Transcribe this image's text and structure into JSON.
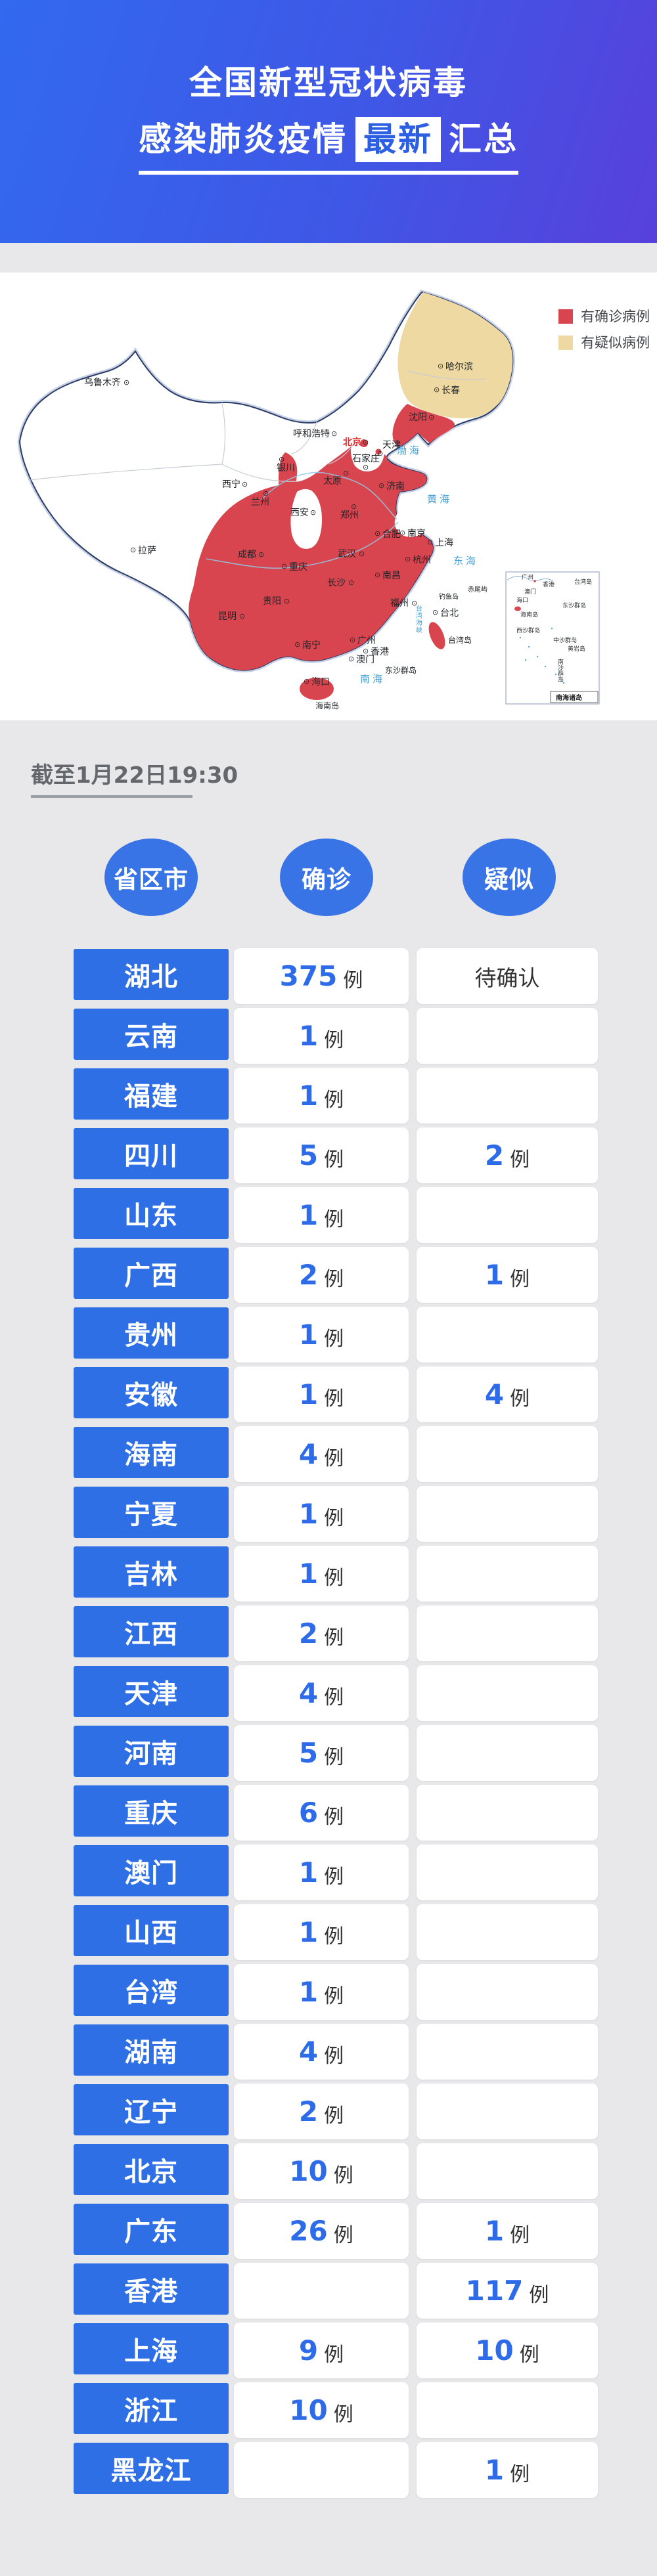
{
  "header": {
    "title_line1": "全国新型冠状病毒",
    "title_line2_prefix": "感染肺炎疫情",
    "title_line2_highlight": "最新",
    "title_line2_suffix": "汇总"
  },
  "timestamp": "截至1月22日19:30",
  "map": {
    "marker_glyph": "⊙",
    "legend": [
      {
        "label": "有确诊病例",
        "color": "#d9454e"
      },
      {
        "label": "有疑似病例",
        "color": "#eed9a2"
      }
    ],
    "cities": [
      {
        "name": "乌鲁木齐"
      },
      {
        "name": "哈尔滨"
      },
      {
        "name": "长春"
      },
      {
        "name": "沈阳"
      },
      {
        "name": "呼和浩特"
      },
      {
        "name": "北京"
      },
      {
        "name": "天津"
      },
      {
        "name": "石家庄"
      },
      {
        "name": "太原"
      },
      {
        "name": "济南"
      },
      {
        "name": "银川"
      },
      {
        "name": "西宁"
      },
      {
        "name": "兰州"
      },
      {
        "name": "西安"
      },
      {
        "name": "郑州"
      },
      {
        "name": "合肥"
      },
      {
        "name": "南京"
      },
      {
        "name": "上海"
      },
      {
        "name": "杭州"
      },
      {
        "name": "成都"
      },
      {
        "name": "重庆"
      },
      {
        "name": "武汉"
      },
      {
        "name": "南昌"
      },
      {
        "name": "长沙"
      },
      {
        "name": "贵阳"
      },
      {
        "name": "昆明"
      },
      {
        "name": "福州"
      },
      {
        "name": "台北"
      },
      {
        "name": "拉萨"
      },
      {
        "name": "南宁"
      },
      {
        "name": "广州"
      },
      {
        "name": "香港"
      },
      {
        "name": "澳门"
      },
      {
        "name": "海口"
      }
    ],
    "seas": [
      "渤海",
      "黄海",
      "东海",
      "南海",
      "台湾海峡"
    ],
    "islands": [
      "海南岛",
      "台湾岛",
      "东沙群岛",
      "钓鱼岛",
      "赤尾屿"
    ],
    "inset": {
      "title": "南海诸岛",
      "labels": [
        "广州",
        "香港",
        "澳门",
        "海口",
        "海南岛",
        "台湾岛",
        "东沙群岛",
        "西沙群岛",
        "中沙群岛",
        "黄岩岛",
        "南沙群岛"
      ]
    }
  },
  "table": {
    "headers": [
      "省区市",
      "确诊",
      "疑似"
    ],
    "unit": "例",
    "rows": [
      {
        "province": "湖北",
        "confirmed": "375",
        "suspected": "待确认"
      },
      {
        "province": "云南",
        "confirmed": "1",
        "suspected": ""
      },
      {
        "province": "福建",
        "confirmed": "1",
        "suspected": ""
      },
      {
        "province": "四川",
        "confirmed": "5",
        "suspected": "2"
      },
      {
        "province": "山东",
        "confirmed": "1",
        "suspected": ""
      },
      {
        "province": "广西",
        "confirmed": "2",
        "suspected": "1"
      },
      {
        "province": "贵州",
        "confirmed": "1",
        "suspected": ""
      },
      {
        "province": "安徽",
        "confirmed": "1",
        "suspected": "4"
      },
      {
        "province": "海南",
        "confirmed": "4",
        "suspected": ""
      },
      {
        "province": "宁夏",
        "confirmed": "1",
        "suspected": ""
      },
      {
        "province": "吉林",
        "confirmed": "1",
        "suspected": ""
      },
      {
        "province": "江西",
        "confirmed": "2",
        "suspected": ""
      },
      {
        "province": "天津",
        "confirmed": "4",
        "suspected": ""
      },
      {
        "province": "河南",
        "confirmed": "5",
        "suspected": ""
      },
      {
        "province": "重庆",
        "confirmed": "6",
        "suspected": ""
      },
      {
        "province": "澳门",
        "confirmed": "1",
        "suspected": ""
      },
      {
        "province": "山西",
        "confirmed": "1",
        "suspected": ""
      },
      {
        "province": "台湾",
        "confirmed": "1",
        "suspected": ""
      },
      {
        "province": "湖南",
        "confirmed": "4",
        "suspected": ""
      },
      {
        "province": "辽宁",
        "confirmed": "2",
        "suspected": ""
      },
      {
        "province": "北京",
        "confirmed": "10",
        "suspected": ""
      },
      {
        "province": "广东",
        "confirmed": "26",
        "suspected": "1"
      },
      {
        "province": "香港",
        "confirmed": "",
        "suspected": "117"
      },
      {
        "province": "上海",
        "confirmed": "9",
        "suspected": "10"
      },
      {
        "province": "浙江",
        "confirmed": "10",
        "suspected": ""
      },
      {
        "province": "黑龙江",
        "confirmed": "",
        "suspected": "1"
      }
    ]
  },
  "chart_data": {
    "type": "table",
    "title": "全国新型冠状病毒感染肺炎疫情最新汇总",
    "as_of": "截至1月22日19:30",
    "columns": [
      "省区市",
      "确诊",
      "疑似"
    ],
    "rows": [
      [
        "湖北",
        "375例",
        "待确认"
      ],
      [
        "云南",
        "1例",
        ""
      ],
      [
        "福建",
        "1例",
        ""
      ],
      [
        "四川",
        "5例",
        "2例"
      ],
      [
        "山东",
        "1例",
        ""
      ],
      [
        "广西",
        "2例",
        "1例"
      ],
      [
        "贵州",
        "1例",
        ""
      ],
      [
        "安徽",
        "1例",
        "4例"
      ],
      [
        "海南",
        "4例",
        ""
      ],
      [
        "宁夏",
        "1例",
        ""
      ],
      [
        "吉林",
        "1例",
        ""
      ],
      [
        "江西",
        "2例",
        ""
      ],
      [
        "天津",
        "4例",
        ""
      ],
      [
        "河南",
        "5例",
        ""
      ],
      [
        "重庆",
        "6例",
        ""
      ],
      [
        "澳门",
        "1例",
        ""
      ],
      [
        "山西",
        "1例",
        ""
      ],
      [
        "台湾",
        "1例",
        ""
      ],
      [
        "湖南",
        "4例",
        ""
      ],
      [
        "辽宁",
        "2例",
        ""
      ],
      [
        "北京",
        "10例",
        ""
      ],
      [
        "广东",
        "26例",
        "1例"
      ],
      [
        "香港",
        "",
        "117例"
      ],
      [
        "上海",
        "9例",
        "10例"
      ],
      [
        "浙江",
        "10例",
        ""
      ],
      [
        "黑龙江",
        "",
        "1例"
      ]
    ],
    "map_legend": {
      "有确诊病例": "#d9454e",
      "有疑似病例": "#eed9a2"
    }
  },
  "colors": {
    "background": "#e8e8ea",
    "accent_blue": "#2f6fe6",
    "number_blue": "#2e6be8",
    "confirmed_red": "#d9454e",
    "suspected_beige": "#eed9a2",
    "header_gradient_start": "#3269ef",
    "header_gradient_end": "#5840dc"
  }
}
